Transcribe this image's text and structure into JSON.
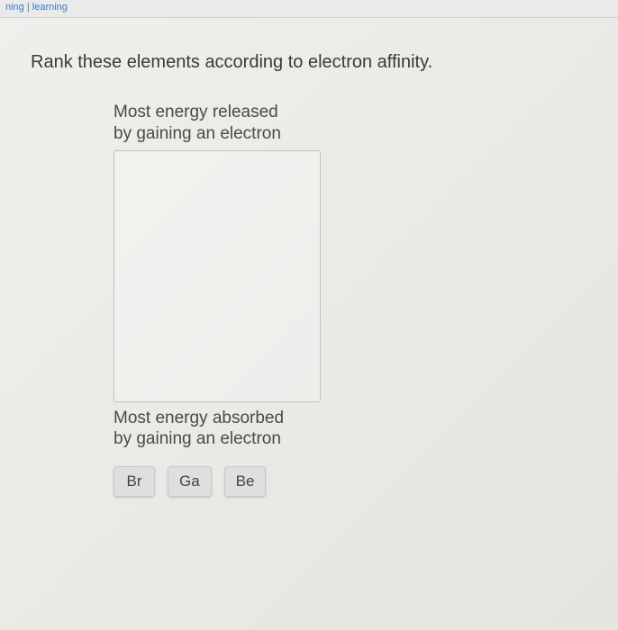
{
  "header": {
    "link_text": "ning | learning"
  },
  "question": {
    "prompt": "Rank these elements according to electron affinity."
  },
  "ranking": {
    "top_label_line1": "Most energy released",
    "top_label_line2": "by gaining an electron",
    "bottom_label_line1": "Most energy absorbed",
    "bottom_label_line2": "by gaining an electron"
  },
  "elements": {
    "tiles": [
      "Br",
      "Ga",
      "Be"
    ],
    "tile_bg": "#dedfdf",
    "tile_border": "#c7c8c8",
    "tile_text_color": "#444444"
  },
  "colors": {
    "page_bg_start": "#f0efec",
    "page_bg_end": "#e5e4e0",
    "question_text": "#3a3a3a",
    "label_text": "#4a4a4a",
    "dropzone_border": "#c0c0c0"
  }
}
